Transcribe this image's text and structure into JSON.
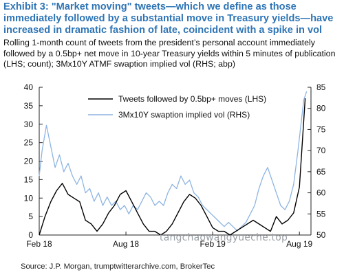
{
  "title": "Exhibit 3: \"Market moving\" tweets—which we define as those immediately followed by a substantial move in Treasury yields—have increased in dramatic fashion of late, coincident with a spike in vol",
  "subtitle": "Rolling 1-month count of tweets from the president’s personal account immediately followed by a 0.5bp+ net move in 10-year Treasury yields within 5 minutes of publication (LHS; count); 3Mx10Y ATMF swaption implied vol (RHS; abp)",
  "source": "Source: J.P. Morgan, trumptwitterarchive.com, BrokerTec",
  "watermark": "tangchaowangyueche.top",
  "chart_data": {
    "type": "line",
    "x_ticks": [
      "Feb 18",
      "Aug 18",
      "Feb 19",
      "Aug 19"
    ],
    "y_left": {
      "ticks": [
        0,
        5,
        10,
        15,
        20,
        25,
        30,
        35,
        40
      ],
      "ylim": [
        0,
        40
      ]
    },
    "y_right": {
      "ticks": [
        50,
        55,
        60,
        65,
        70,
        75,
        80,
        85
      ],
      "ylim": [
        50,
        85
      ]
    },
    "legend_position": "top-right",
    "colors": {
      "tweets": "#000000",
      "vol": "#8db4e2"
    },
    "series": [
      {
        "name": "Tweets followed by 0.5bp+ moves (LHS)",
        "axis": "left",
        "x_months": [
          0,
          0.4,
          0.8,
          1.2,
          1.6,
          2.0,
          2.4,
          2.8,
          3.2,
          3.6,
          4.0,
          4.4,
          4.8,
          5.2,
          5.6,
          6.0,
          6.4,
          6.8,
          7.2,
          7.6,
          8.0,
          8.4,
          8.8,
          9.2,
          9.6,
          10.0,
          10.4,
          10.8,
          11.2,
          11.6,
          12.0,
          12.4,
          12.8,
          13.2,
          13.6,
          14.0,
          14.4,
          14.8,
          15.2,
          15.6,
          16.0,
          16.4,
          16.8,
          17.2,
          17.6,
          18.0,
          18.2,
          18.4
        ],
        "values": [
          0,
          5,
          9,
          12,
          14,
          11,
          10,
          9,
          4,
          3,
          1,
          3,
          6,
          8,
          11,
          12,
          9,
          6,
          3,
          1,
          1,
          0,
          1,
          3,
          6,
          9,
          11,
          10,
          8,
          5,
          2,
          1,
          1,
          0,
          1,
          2,
          3,
          4,
          3,
          2,
          1,
          5,
          3,
          4,
          6,
          13,
          25,
          37
        ]
      },
      {
        "name": "3Mx10Y swaption implied vol (RHS)",
        "axis": "right",
        "x_months": [
          0,
          0.2,
          0.5,
          0.8,
          1.1,
          1.4,
          1.7,
          2.0,
          2.3,
          2.6,
          2.9,
          3.2,
          3.5,
          3.8,
          4.1,
          4.4,
          4.7,
          5.0,
          5.3,
          5.6,
          5.9,
          6.2,
          6.5,
          6.8,
          7.1,
          7.4,
          7.7,
          8.0,
          8.3,
          8.6,
          8.9,
          9.2,
          9.5,
          9.8,
          10.1,
          10.4,
          10.7,
          11.0,
          11.3,
          11.6,
          11.9,
          12.2,
          12.5,
          12.8,
          13.1,
          13.4,
          13.7,
          14.0,
          14.3,
          14.6,
          14.9,
          15.2,
          15.5,
          15.8,
          16.1,
          16.4,
          16.7,
          17.0,
          17.3,
          17.6,
          17.9,
          18.1,
          18.3,
          18.5
        ],
        "values": [
          64,
          70,
          76,
          71,
          66,
          69,
          65,
          67,
          64,
          62,
          64,
          60,
          61,
          58,
          60,
          57,
          59,
          57,
          58,
          56,
          57,
          55,
          57,
          56,
          58,
          60,
          59,
          57,
          58,
          57,
          60,
          62,
          61,
          64,
          62,
          63,
          60,
          59,
          57,
          56,
          55,
          54,
          53,
          52,
          53,
          52,
          51,
          52,
          53,
          55,
          57,
          61,
          64,
          66,
          63,
          60,
          57,
          56,
          58,
          62,
          70,
          76,
          82,
          84
        ]
      }
    ]
  }
}
